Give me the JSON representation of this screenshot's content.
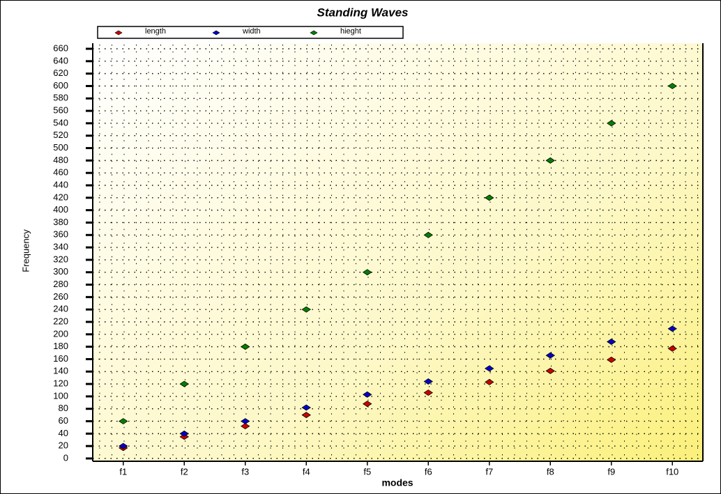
{
  "chart_data": {
    "type": "scatter",
    "title": "Standing Waves",
    "x_label": "modes",
    "y_label": "Frequency",
    "categories": [
      "f1",
      "f2",
      "f3",
      "f4",
      "f5",
      "f6",
      "f7",
      "f8",
      "f9",
      "f10"
    ],
    "series": [
      {
        "name": "length",
        "color": "#cc0000",
        "values": [
          17,
          35,
          52,
          70,
          88,
          106,
          123,
          141,
          159,
          177
        ]
      },
      {
        "name": "width",
        "color": "#0000cc",
        "values": [
          20,
          40,
          60,
          82,
          103,
          124,
          145,
          166,
          188,
          209
        ]
      },
      {
        "name": "hieght",
        "color": "#008000",
        "values": [
          60,
          120,
          180,
          240,
          300,
          360,
          420,
          480,
          540,
          600
        ]
      }
    ],
    "ylim": [
      0,
      660
    ],
    "yticks": [
      0,
      20,
      40,
      60,
      80,
      100,
      120,
      140,
      160,
      180,
      200,
      220,
      240,
      260,
      280,
      300,
      320,
      340,
      360,
      380,
      400,
      420,
      440,
      460,
      480,
      500,
      520,
      540,
      560,
      580,
      600,
      620,
      640,
      660
    ],
    "grid": true,
    "legend": "top"
  }
}
